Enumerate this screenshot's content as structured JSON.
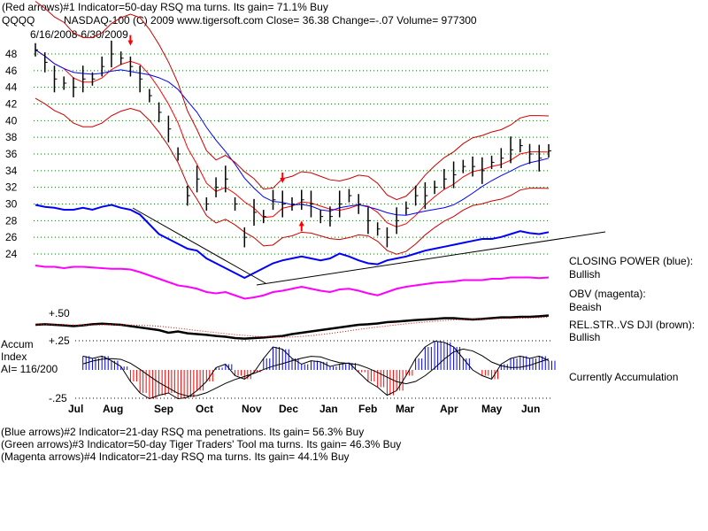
{
  "header": {
    "line1": "(Red arrows)#1 Indicator=50-day RSQ ma turns. Its gain= 71.1% Buy",
    "symbol": "QQQQ",
    "info": "NASDAQ-100  (C) 2009 www.tigersoft.com    Close=  36.38  Change=-.07 Volume= 977300",
    "date_range": "6/16/2008-6/30/2009"
  },
  "right_labels": {
    "cp_title": "CLOSING POWER (blue):",
    "cp_value": "Bullish",
    "obv_title": "OBV (magenta):",
    "obv_value": "Beaish",
    "rs_title": "REL.STR..VS DJI (brown):",
    "rs_value": "Bullish",
    "accum_status": "Currently Accumulation"
  },
  "left_labels": {
    "accum": "Accum",
    "index": "Index",
    "ai": "AI= 116/200",
    "p50": "+.50",
    "p25": "+.25",
    "m25": "-.25"
  },
  "footer": [
    "(Blue arrows)#2 Indicator=21-day RSQ ma penetrations. Its gain= 56.3% Buy",
    "(Green arrows)#3 Indicator=50-day Tiger Traders' Tool ma turns. Its gain= 46.3% Buy",
    "(Magenta arrows)#4 Indicator=21-day RSQ ma turns. Its gain= 44.1% Buy"
  ],
  "colors": {
    "price": "#000000",
    "ma_red": "#ff0000",
    "ma_blue": "#0000ff",
    "band": "#cc0000",
    "cp": "#0000ff",
    "obv": "#ff00ff",
    "rs": "#000000",
    "accum_pos": "#0000ff",
    "accum_neg": "#ff0000",
    "grid": "#008000"
  },
  "chart_data": {
    "type": "line",
    "title": "QQQQ NASDAQ-100 6/16/2008-6/30/2009",
    "ylim": [
      24,
      48
    ],
    "yticks": [
      "48",
      "46",
      "44",
      "42",
      "40",
      "38",
      "36",
      "34",
      "32",
      "30",
      "28",
      "26",
      "24"
    ],
    "month_labels": [
      "Jul",
      "Aug",
      "Sep",
      "Oct",
      "Nov",
      "Dec",
      "Jan",
      "Feb",
      "Mar",
      "Apr",
      "May",
      "Jun"
    ],
    "weekly_close": [
      48.5,
      47,
      45,
      44.5,
      44,
      45,
      45,
      46.5,
      48,
      47.5,
      46.5,
      45,
      43,
      41,
      39,
      36,
      31,
      33,
      30,
      32,
      33,
      30,
      26,
      29,
      28.5,
      30.5,
      30,
      30,
      30.5,
      30,
      28.5,
      28.5,
      30,
      31,
      30,
      28,
      27,
      26,
      28,
      29.5,
      31,
      31,
      32,
      33,
      33.5,
      34.5,
      34.5,
      34,
      35,
      35.5,
      36.5,
      37,
      36,
      35.5,
      36.38
    ],
    "closing_power": [
      85,
      83,
      82,
      80,
      80,
      82,
      80,
      83,
      85,
      82,
      80,
      75,
      65,
      55,
      50,
      45,
      40,
      38,
      30,
      25,
      20,
      15,
      10,
      15,
      20,
      25,
      28,
      30,
      32,
      30,
      28,
      30,
      35,
      32,
      28,
      25,
      24,
      28,
      30,
      32,
      35,
      38,
      40,
      42,
      44,
      46,
      48,
      50,
      50,
      52,
      55,
      58,
      56,
      55,
      57
    ],
    "obv": [
      60,
      58,
      58,
      56,
      58,
      58,
      57,
      56,
      55,
      55,
      54,
      50,
      45,
      40,
      35,
      30,
      28,
      25,
      20,
      18,
      20,
      15,
      10,
      12,
      15,
      20,
      22,
      25,
      28,
      25,
      22,
      20,
      24,
      25,
      22,
      18,
      15,
      20,
      25,
      28,
      30,
      32,
      34,
      35,
      36,
      38,
      38,
      38,
      40,
      40,
      42,
      42,
      42,
      41,
      42
    ],
    "rel_strength": [
      60,
      62,
      60,
      58,
      55,
      58,
      62,
      64,
      62,
      60,
      55,
      50,
      45,
      40,
      30,
      35,
      28,
      25,
      22,
      18,
      15,
      10,
      8,
      10,
      12,
      15,
      18,
      25,
      30,
      35,
      40,
      45,
      50,
      55,
      60,
      62,
      65,
      70,
      72,
      75,
      78,
      80,
      82,
      85,
      85,
      82,
      80,
      82,
      85,
      88,
      88,
      90,
      90,
      92,
      95
    ],
    "accum_index": [
      -0.05,
      0.02,
      0.05,
      0.07,
      0.1,
      0.12,
      0.1,
      0.12,
      0.08,
      0.03,
      -0.1,
      -0.2,
      -0.25,
      -0.22,
      -0.2,
      -0.25,
      -0.24,
      -0.18,
      -0.1,
      0.02,
      0.05,
      -0.05,
      -0.08,
      -0.02,
      0.1,
      0.2,
      0.18,
      0.1,
      0.05,
      0.08,
      0.07,
      0.03,
      0.05,
      0.06,
      -0.02,
      -0.1,
      -0.15,
      -0.22,
      -0.18,
      -0.05,
      0.1,
      0.2,
      0.25,
      0.24,
      0.2,
      0.1,
      0,
      -0.05,
      -0.08,
      0.05,
      0.1,
      0.12,
      0.1,
      0.12,
      0.08
    ],
    "arrows": [
      {
        "week": 10,
        "dir": "down"
      },
      {
        "week": 26,
        "dir": "down"
      },
      {
        "week": 28,
        "dir": "up"
      }
    ]
  }
}
